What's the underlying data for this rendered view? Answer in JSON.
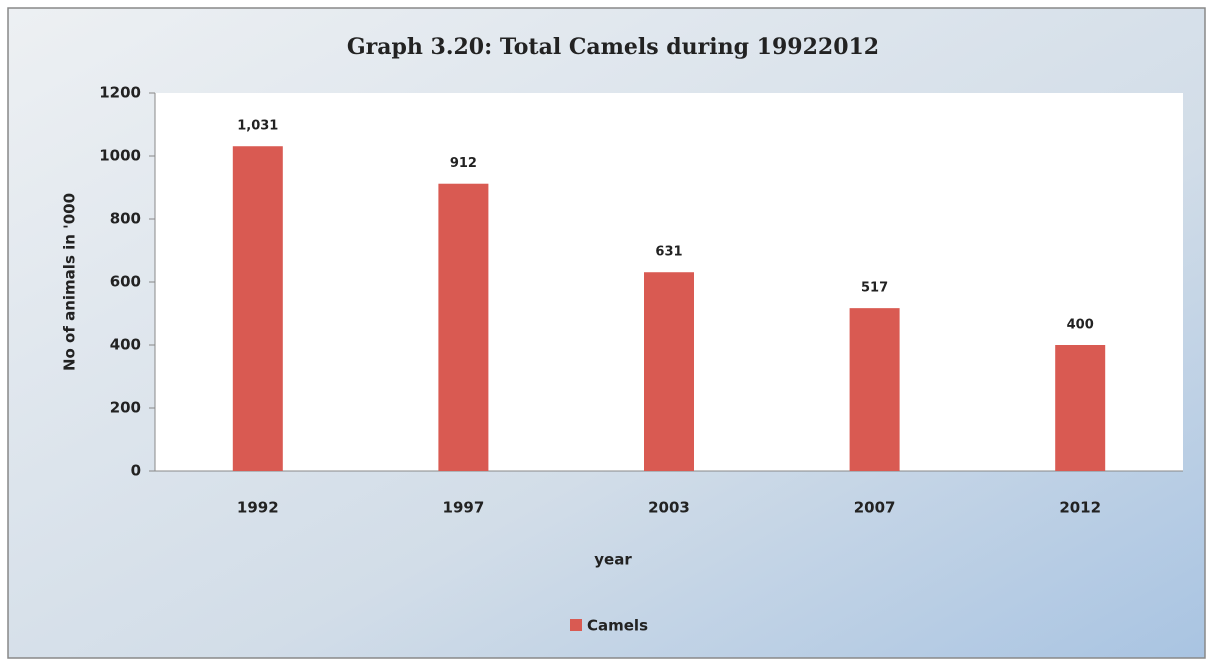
{
  "chart_data": {
    "type": "bar",
    "title": "Graph 3.20: Total Camels during 19922012",
    "x_label": "year",
    "y_label": "No of animals in '000",
    "categories": [
      "1992",
      "1997",
      "2003",
      "2007",
      "2012"
    ],
    "series": [
      {
        "name": "Camels",
        "color": "#d95a52",
        "values": [
          1031,
          912,
          631,
          517,
          400
        ],
        "value_labels": [
          "1,031",
          "912",
          "631",
          "517",
          "400"
        ]
      }
    ],
    "ylim": [
      0,
      1200
    ],
    "yticks": [
      0,
      200,
      400,
      600,
      800,
      1000,
      1200
    ],
    "grid": false,
    "legend": "bottom"
  }
}
